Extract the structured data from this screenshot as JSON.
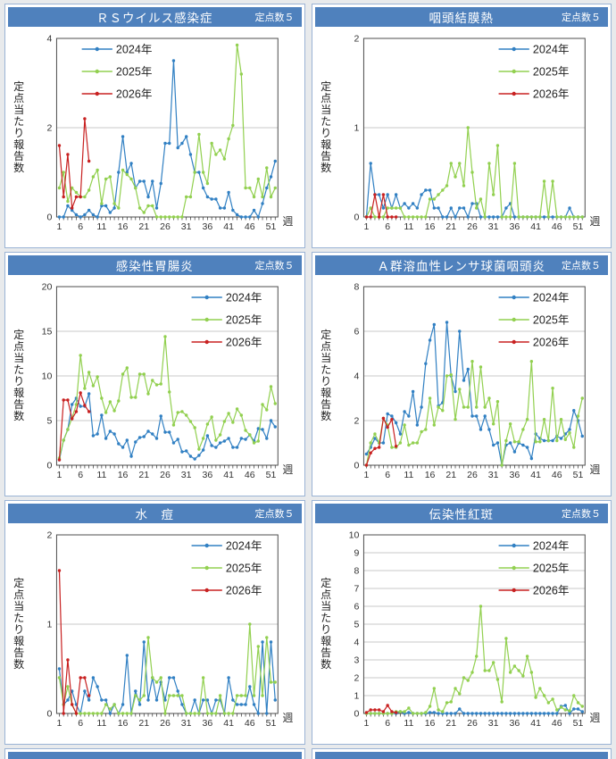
{
  "page": {
    "accent_color": "#4f81bd",
    "panel_border_color": "#9ab3d5",
    "grid_color": "#c9c9c9",
    "frame_color": "#4d4d4d",
    "text_color": "#333333"
  },
  "chart_data": [
    {
      "type": "line",
      "title": "ＲＳウイルス感染症",
      "badge": "定点数５",
      "xlabel": "週",
      "ylabel": "定点当たり報告数",
      "x_range": [
        1,
        52
      ],
      "xticks": [
        1,
        6,
        11,
        16,
        21,
        26,
        31,
        36,
        41,
        46,
        51
      ],
      "ylim": [
        0,
        4
      ],
      "yticks": [
        0,
        2,
        4
      ],
      "grid": true,
      "legend_position": "upper-left",
      "series": [
        {
          "name": "2024年",
          "color": "#3180c3",
          "values": [
            0,
            0,
            0.25,
            0.15,
            0.05,
            0,
            0.05,
            0.15,
            0.05,
            0,
            0.25,
            0.25,
            0.1,
            0.2,
            1.0,
            1.8,
            1.0,
            1.2,
            0.65,
            0.8,
            0.8,
            0.45,
            0.8,
            0.2,
            0.75,
            1.65,
            1.65,
            3.5,
            1.55,
            1.65,
            1.8,
            1.4,
            1.0,
            1.0,
            0.65,
            0.45,
            0.4,
            0.4,
            0.2,
            0.2,
            0.55,
            0.15,
            0.05,
            0,
            0,
            0,
            0.15,
            0,
            0.3,
            0.65,
            0.9,
            1.25
          ]
        },
        {
          "name": "2025年",
          "color": "#92d050",
          "values": [
            0.65,
            1.0,
            0.35,
            0.65,
            0.55,
            0.45,
            0.45,
            0.6,
            0.9,
            1.05,
            0.3,
            0.85,
            0.9,
            0.3,
            0.2,
            1.05,
            0.95,
            0.85,
            0.65,
            0.2,
            0.1,
            0.25,
            0.25,
            0,
            0,
            0,
            0,
            0,
            0,
            0,
            0.45,
            0.45,
            1.0,
            1.85,
            1.0,
            0.75,
            1.65,
            1.4,
            1.5,
            1.3,
            1.75,
            2.05,
            3.85,
            3.2,
            0.65,
            0.65,
            0.45,
            0.85,
            0.45,
            1.1,
            0.45,
            0.65
          ]
        },
        {
          "name": "2026年",
          "color": "#c82121",
          "values": [
            1.6,
            0.45,
            1.4,
            0.2,
            0.45,
            0.45,
            2.2,
            1.25
          ]
        }
      ]
    },
    {
      "type": "line",
      "title": "咽頭結膜熱",
      "badge": "定点数５",
      "xlabel": "週",
      "ylabel": "定点当たり報告数",
      "x_range": [
        1,
        52
      ],
      "xticks": [
        1,
        6,
        11,
        16,
        21,
        26,
        31,
        36,
        41,
        46,
        51
      ],
      "ylim": [
        0,
        2
      ],
      "yticks": [
        0,
        1,
        2
      ],
      "grid": true,
      "legend_position": "upper-right",
      "series": [
        {
          "name": "2024年",
          "color": "#3180c3",
          "values": [
            0,
            0.6,
            0.25,
            0.25,
            0.1,
            0.25,
            0.1,
            0.25,
            0.1,
            0.15,
            0.1,
            0.15,
            0.1,
            0.25,
            0.3,
            0.3,
            0.1,
            0.1,
            0,
            0,
            0.1,
            0,
            0.1,
            0.1,
            0,
            0.15,
            0.15,
            0,
            0,
            0,
            0,
            0,
            0,
            0.1,
            0.15,
            0,
            0,
            0,
            0,
            0,
            0,
            0,
            0,
            0,
            0,
            0,
            0,
            0,
            0.1,
            0,
            0,
            0
          ]
        },
        {
          "name": "2025年",
          "color": "#92d050",
          "values": [
            0,
            0.1,
            0,
            0,
            0,
            0.1,
            0.1,
            0.1,
            0.1,
            0,
            0,
            0,
            0,
            0,
            0,
            0.2,
            0.2,
            0.25,
            0.3,
            0.35,
            0.6,
            0.45,
            0.6,
            0.35,
            1.0,
            0.5,
            0.1,
            0.2,
            0,
            0.6,
            0.25,
            0.8,
            0,
            0,
            0,
            0.6,
            0,
            0,
            0,
            0,
            0,
            0,
            0.4,
            0,
            0.4,
            0,
            0,
            0,
            0,
            0,
            0,
            0
          ]
        },
        {
          "name": "2026年",
          "color": "#c82121",
          "values": [
            0,
            0,
            0.25,
            0,
            0.25,
            0,
            0,
            0
          ]
        }
      ]
    },
    {
      "type": "line",
      "title": "感染性胃腸炎",
      "badge": "定点数５",
      "xlabel": "週",
      "ylabel": "定点当たり報告数",
      "x_range": [
        1,
        52
      ],
      "xticks": [
        1,
        6,
        11,
        16,
        21,
        26,
        31,
        36,
        41,
        46,
        51
      ],
      "ylim": [
        0,
        20
      ],
      "yticks": [
        0,
        5,
        10,
        15,
        20
      ],
      "grid": true,
      "legend_position": "upper-right",
      "series": [
        {
          "name": "2024年",
          "color": "#3180c3",
          "values": [
            0.6,
            2.8,
            4.0,
            6.8,
            7.5,
            6.6,
            6.6,
            8.0,
            3.3,
            3.5,
            5.6,
            3.0,
            3.8,
            3.5,
            2.4,
            2.0,
            2.8,
            1.0,
            2.6,
            3.1,
            3.2,
            3.8,
            3.5,
            3.0,
            5.5,
            3.7,
            3.7,
            2.5,
            2.9,
            1.5,
            1.6,
            1.0,
            0.7,
            1.1,
            1.7,
            3.3,
            2.2,
            2.0,
            2.5,
            2.7,
            3.0,
            2.0,
            2.0,
            3.0,
            2.9,
            3.4,
            2.7,
            4.1,
            4.0,
            3.0,
            5.0,
            4.3
          ]
        },
        {
          "name": "2025年",
          "color": "#92d050",
          "values": [
            0.8,
            2.8,
            4.0,
            5.3,
            6.8,
            12.3,
            8.6,
            10.4,
            8.9,
            9.9,
            7.5,
            5.9,
            7.1,
            6.1,
            7.2,
            10.2,
            10.9,
            7.6,
            7.6,
            10.2,
            10.2,
            8.0,
            9.5,
            9.0,
            9.1,
            14.4,
            8.2,
            4.5,
            5.9,
            6.0,
            5.6,
            4.9,
            4.2,
            1.8,
            3.0,
            4.6,
            5.4,
            2.8,
            3.4,
            4.9,
            5.8,
            4.8,
            6.3,
            5.6,
            3.9,
            3.4,
            2.5,
            2.7,
            6.8,
            6.2,
            8.8,
            6.9
          ]
        },
        {
          "name": "2026年",
          "color": "#c82121",
          "values": [
            0.6,
            7.3,
            7.3,
            5.2,
            6.0,
            8.1,
            6.7,
            6.0
          ]
        }
      ]
    },
    {
      "type": "line",
      "title": "Ａ群溶血性レンサ球菌咽頭炎",
      "badge": "定点数５",
      "xlabel": "週",
      "ylabel": "定点当たり報告数",
      "x_range": [
        1,
        52
      ],
      "xticks": [
        1,
        6,
        11,
        16,
        21,
        26,
        31,
        36,
        41,
        46,
        51
      ],
      "ylim": [
        0,
        8
      ],
      "yticks": [
        0,
        2,
        4,
        6,
        8
      ],
      "grid": true,
      "legend_position": "upper-right",
      "series": [
        {
          "name": "2024年",
          "color": "#3180c3",
          "values": [
            0.5,
            0.8,
            1.2,
            1.0,
            1.0,
            2.3,
            2.2,
            1.9,
            1.4,
            2.4,
            2.2,
            3.3,
            1.8,
            2.6,
            4.55,
            5.6,
            6.3,
            2.65,
            2.8,
            6.4,
            4.0,
            3.3,
            6.0,
            3.8,
            4.3,
            2.2,
            2.2,
            1.6,
            2.2,
            1.6,
            0.9,
            1.0,
            0,
            0.9,
            1.0,
            0.6,
            1.0,
            0.9,
            0.8,
            0.3,
            1.4,
            1.2,
            1.1,
            1.1,
            1.1,
            1.3,
            1.2,
            1.4,
            1.6,
            2.45,
            2.0,
            1.3
          ]
        },
        {
          "name": "2025年",
          "color": "#92d050",
          "values": [
            0,
            1.0,
            1.4,
            1.0,
            2.1,
            1.8,
            0.8,
            0.8,
            1.0,
            1.8,
            0.9,
            1.0,
            1.0,
            1.5,
            1.6,
            3.0,
            1.8,
            2.6,
            2.45,
            4.0,
            4.05,
            2.05,
            3.4,
            2.6,
            2.6,
            4.65,
            2.6,
            4.4,
            2.6,
            3.0,
            1.85,
            2.85,
            0,
            1.1,
            1.85,
            1.05,
            1.05,
            1.6,
            2.05,
            4.65,
            1.05,
            1.05,
            2.05,
            1.1,
            3.45,
            1.1,
            2.05,
            1.15,
            1.45,
            0.8,
            2.2,
            3.0
          ]
        },
        {
          "name": "2026年",
          "color": "#c82121",
          "values": [
            0,
            0.55,
            0.75,
            0.8,
            2.1,
            1.7,
            2.05,
            0.85
          ]
        }
      ]
    },
    {
      "type": "line",
      "title": "水　痘",
      "badge": "定点数５",
      "xlabel": "週",
      "ylabel": "定点当たり報告数",
      "x_range": [
        1,
        52
      ],
      "xticks": [
        1,
        6,
        11,
        16,
        21,
        26,
        31,
        36,
        41,
        46,
        51
      ],
      "ylim": [
        0,
        2
      ],
      "yticks": [
        0,
        1,
        2
      ],
      "grid": true,
      "legend_position": "upper-right",
      "series": [
        {
          "name": "2024年",
          "color": "#3180c3",
          "values": [
            0.5,
            0.1,
            0.15,
            0.25,
            0.1,
            0,
            0.25,
            0.15,
            0.4,
            0.3,
            0.15,
            0.15,
            0,
            0.1,
            0,
            0.1,
            0.65,
            0,
            0.25,
            0.1,
            0.8,
            0.15,
            0.4,
            0.15,
            0.35,
            0.15,
            0.4,
            0.4,
            0.25,
            0.1,
            0,
            0,
            0.15,
            0,
            0.15,
            0.15,
            0,
            0.15,
            0.15,
            0,
            0.4,
            0.15,
            0.1,
            0.1,
            0.1,
            0.3,
            0.1,
            0,
            0.8,
            0,
            0.8,
            0.15
          ]
        },
        {
          "name": "2025年",
          "color": "#92d050",
          "values": [
            0.4,
            0.1,
            0.3,
            0.1,
            0,
            0,
            0,
            0,
            0,
            0,
            0,
            0.1,
            0.05,
            0.1,
            0,
            0,
            0,
            0,
            0.2,
            0.15,
            0.2,
            0.85,
            0.4,
            0.35,
            0.4,
            0,
            0.2,
            0.2,
            0.2,
            0.2,
            0,
            0,
            0,
            0,
            0.4,
            0,
            0,
            0,
            0.2,
            0,
            0,
            0,
            0.2,
            0.2,
            0.2,
            1.0,
            0.2,
            0.75,
            0.2,
            0.85,
            0.35,
            0.35
          ]
        },
        {
          "name": "2026年",
          "color": "#c82121",
          "values": [
            1.6,
            0,
            0.6,
            0.1,
            0,
            0.4,
            0.4,
            0.2
          ]
        }
      ]
    },
    {
      "type": "line",
      "title": "伝染性紅斑",
      "badge": "定点数５",
      "xlabel": "週",
      "ylabel": "定点当たり報告数",
      "x_range": [
        1,
        52
      ],
      "xticks": [
        1,
        6,
        11,
        16,
        21,
        26,
        31,
        36,
        41,
        46,
        51
      ],
      "ylim": [
        0,
        10
      ],
      "yticks": [
        0,
        1,
        2,
        3,
        4,
        5,
        6,
        7,
        8,
        9,
        10
      ],
      "grid": true,
      "legend_position": "upper-right",
      "series": [
        {
          "name": "2024年",
          "color": "#3180c3",
          "values": [
            0,
            0,
            0,
            0,
            0,
            0,
            0,
            0,
            0.1,
            0,
            0.05,
            0,
            0,
            0,
            0,
            0.05,
            0.05,
            0,
            0,
            0,
            0,
            0,
            0.25,
            0,
            0,
            0,
            0,
            0,
            0,
            0,
            0,
            0,
            0,
            0,
            0,
            0,
            0,
            0,
            0,
            0,
            0,
            0,
            0,
            0,
            0,
            0,
            0.4,
            0.45,
            0,
            0.25,
            0.25,
            0.1
          ]
        },
        {
          "name": "2025年",
          "color": "#92d050",
          "values": [
            0,
            0,
            0,
            0,
            0,
            0,
            0,
            0.1,
            0.1,
            0.1,
            0.3,
            0,
            0,
            0,
            0.05,
            0.4,
            1.4,
            0.2,
            0.1,
            0.6,
            0.65,
            1.4,
            1.1,
            2.0,
            1.85,
            2.3,
            3.2,
            6.0,
            2.4,
            2.4,
            2.85,
            1.9,
            0.65,
            4.2,
            2.3,
            2.65,
            2.4,
            2.1,
            3.2,
            2.3,
            0.9,
            1.4,
            1.0,
            0.6,
            0.8,
            0.2,
            0.35,
            0.2,
            0.15,
            1.0,
            0.6,
            0.4
          ]
        },
        {
          "name": "2026年",
          "color": "#c82121",
          "values": [
            0.05,
            0.2,
            0.2,
            0.2,
            0.1,
            0.45,
            0.1,
            0.05
          ]
        }
      ]
    }
  ]
}
